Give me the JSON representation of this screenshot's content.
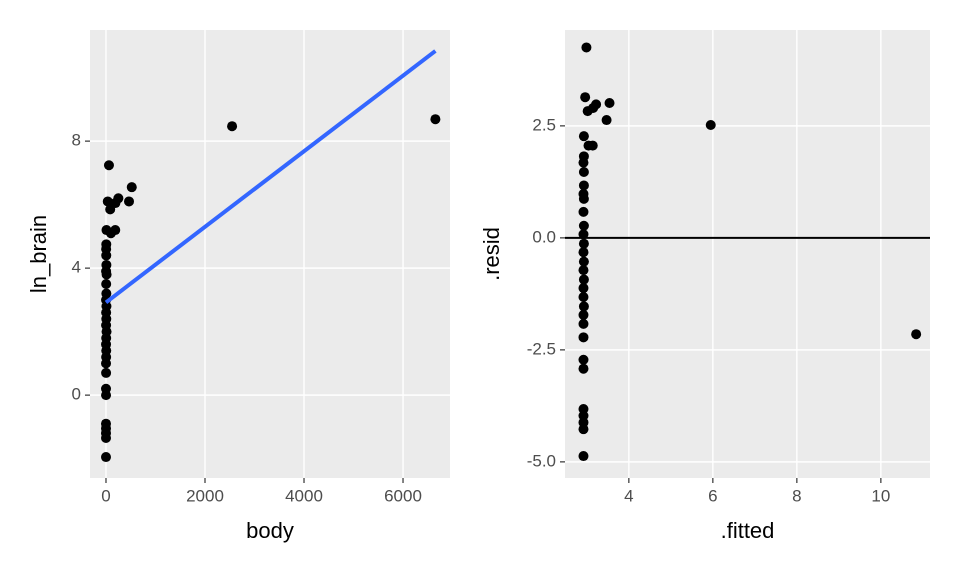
{
  "chart_data": [
    {
      "type": "scatter",
      "x_label": "body",
      "y_label": "ln_brain",
      "color": "#000000",
      "x": [
        2547,
        6654,
        60,
        521,
        465,
        250,
        190,
        36,
        85,
        187,
        100,
        10,
        6,
        3,
        5,
        8,
        2,
        12,
        4,
        7,
        1,
        9,
        3,
        6,
        2,
        11,
        4,
        1,
        5,
        3,
        0.5,
        2,
        0.3,
        1,
        0.1,
        0.2,
        0.05,
        0.02,
        0.01
      ],
      "values": [
        8.47,
        8.69,
        7.24,
        6.55,
        6.1,
        6.2,
        6.05,
        6.1,
        5.85,
        5.2,
        5.1,
        5.2,
        4.75,
        4.6,
        4.4,
        4.1,
        3.9,
        3.8,
        3.5,
        3.2,
        3.0,
        2.8,
        2.6,
        2.4,
        2.2,
        2.0,
        1.8,
        1.6,
        1.4,
        1.2,
        1.0,
        0.7,
        0.2,
        0.0,
        -0.9,
        -1.05,
        -1.2,
        -1.35,
        -1.95
      ],
      "fit": {
        "x": [
          0,
          6654
        ],
        "values": [
          2.92,
          10.84
        ],
        "color": "#3366ff"
      },
      "xlim": [
        -323,
        6949
      ],
      "ylim": [
        -2.61,
        11.5
      ],
      "xticks": [
        0,
        2000,
        4000,
        6000
      ],
      "yticks": [
        0,
        4,
        8
      ],
      "grid": true
    },
    {
      "type": "scatter",
      "x_label": ".fitted",
      "y_label": ".resid",
      "color": "#000000",
      "x": [
        5.95,
        10.84,
        2.99,
        3.54,
        3.47,
        3.22,
        3.15,
        2.96,
        3.02,
        3.14,
        3.04,
        2.93,
        2.93,
        2.92,
        2.93,
        2.93,
        2.92,
        2.93,
        2.92,
        2.93,
        2.92,
        2.93,
        2.92,
        2.93,
        2.92,
        2.93,
        2.92,
        2.92,
        2.93,
        2.92,
        2.92,
        2.92,
        2.92,
        2.92,
        2.92,
        2.92,
        2.92,
        2.92,
        2.92
      ],
      "values": [
        2.52,
        -2.15,
        4.25,
        3.01,
        2.63,
        2.98,
        2.9,
        3.14,
        2.83,
        2.06,
        2.06,
        2.27,
        1.82,
        1.68,
        1.47,
        1.17,
        0.98,
        0.87,
        0.58,
        0.27,
        0.08,
        -0.13,
        -0.32,
        -0.53,
        -0.72,
        -0.93,
        -1.12,
        -1.32,
        -1.53,
        -1.72,
        -1.92,
        -2.22,
        -2.72,
        -2.92,
        -3.82,
        -3.97,
        -4.12,
        -4.27,
        -4.87
      ],
      "hline": 0,
      "xlim": [
        2.48,
        11.17
      ],
      "ylim": [
        -5.36,
        4.64
      ],
      "xticks": [
        4,
        6,
        8,
        10
      ],
      "yticks": [
        {
          "value": -5,
          "label": "-5.0"
        },
        {
          "value": -2.5,
          "label": "-2.5"
        },
        {
          "value": 0,
          "label": "0.0"
        },
        {
          "value": 2.5,
          "label": "2.5"
        }
      ],
      "grid": true
    }
  ]
}
